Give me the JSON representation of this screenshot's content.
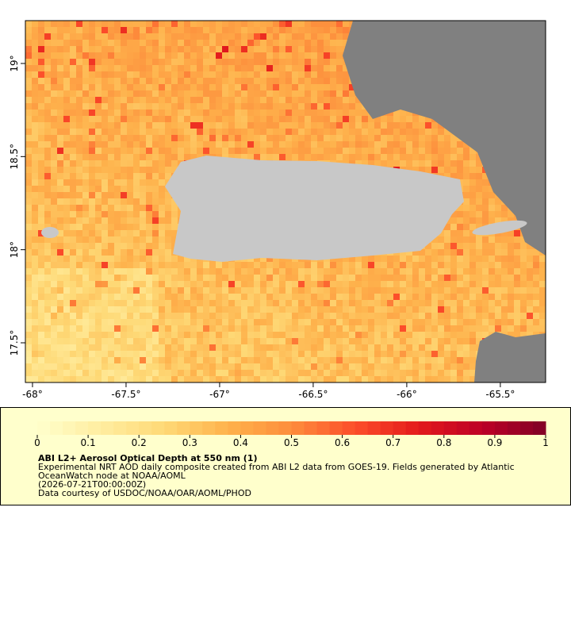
{
  "map": {
    "xlim": [
      -68.038,
      -65.258
    ],
    "ylim": [
      17.287,
      19.23
    ],
    "xticks": [
      {
        "value": -68,
        "label": "-68°"
      },
      {
        "value": -67.5,
        "label": "-67.5°"
      },
      {
        "value": -67,
        "label": "-67°"
      },
      {
        "value": -66.5,
        "label": "-66.5°"
      },
      {
        "value": -66,
        "label": "-66°"
      },
      {
        "value": -65.5,
        "label": "-65.5°"
      }
    ],
    "yticks": [
      {
        "value": 19,
        "label": "19°"
      },
      {
        "value": 18.5,
        "label": "18.5°"
      },
      {
        "value": 18,
        "label": "18°"
      },
      {
        "value": 17.5,
        "label": "17.5°"
      }
    ]
  },
  "colorbar": {
    "range": [
      0,
      1
    ],
    "ticks": [
      0,
      0.1,
      0.2,
      0.3,
      0.4,
      0.5,
      0.6,
      0.7,
      0.8,
      0.9,
      1
    ],
    "colors": [
      "#ffffcc",
      "#ffeda0",
      "#fed976",
      "#feb24c",
      "#fd8d3c",
      "#fc4e2a",
      "#e31a1c",
      "#bd0026",
      "#800026"
    ]
  },
  "caption": {
    "title": "ABI L2+ Aerosol Optical Depth at 550 nm (1)",
    "lines": [
      "Experimental NRT AOD daily composite created from ABI L2 data from GOES-19. Fields generated by Atlantic",
      "OceanWatch node at NOAA/AOML",
      "(2026-07-21T00:00:00Z)",
      "Data courtesy of USDOC/NOAA/OAR/AOML/PHOD"
    ]
  }
}
